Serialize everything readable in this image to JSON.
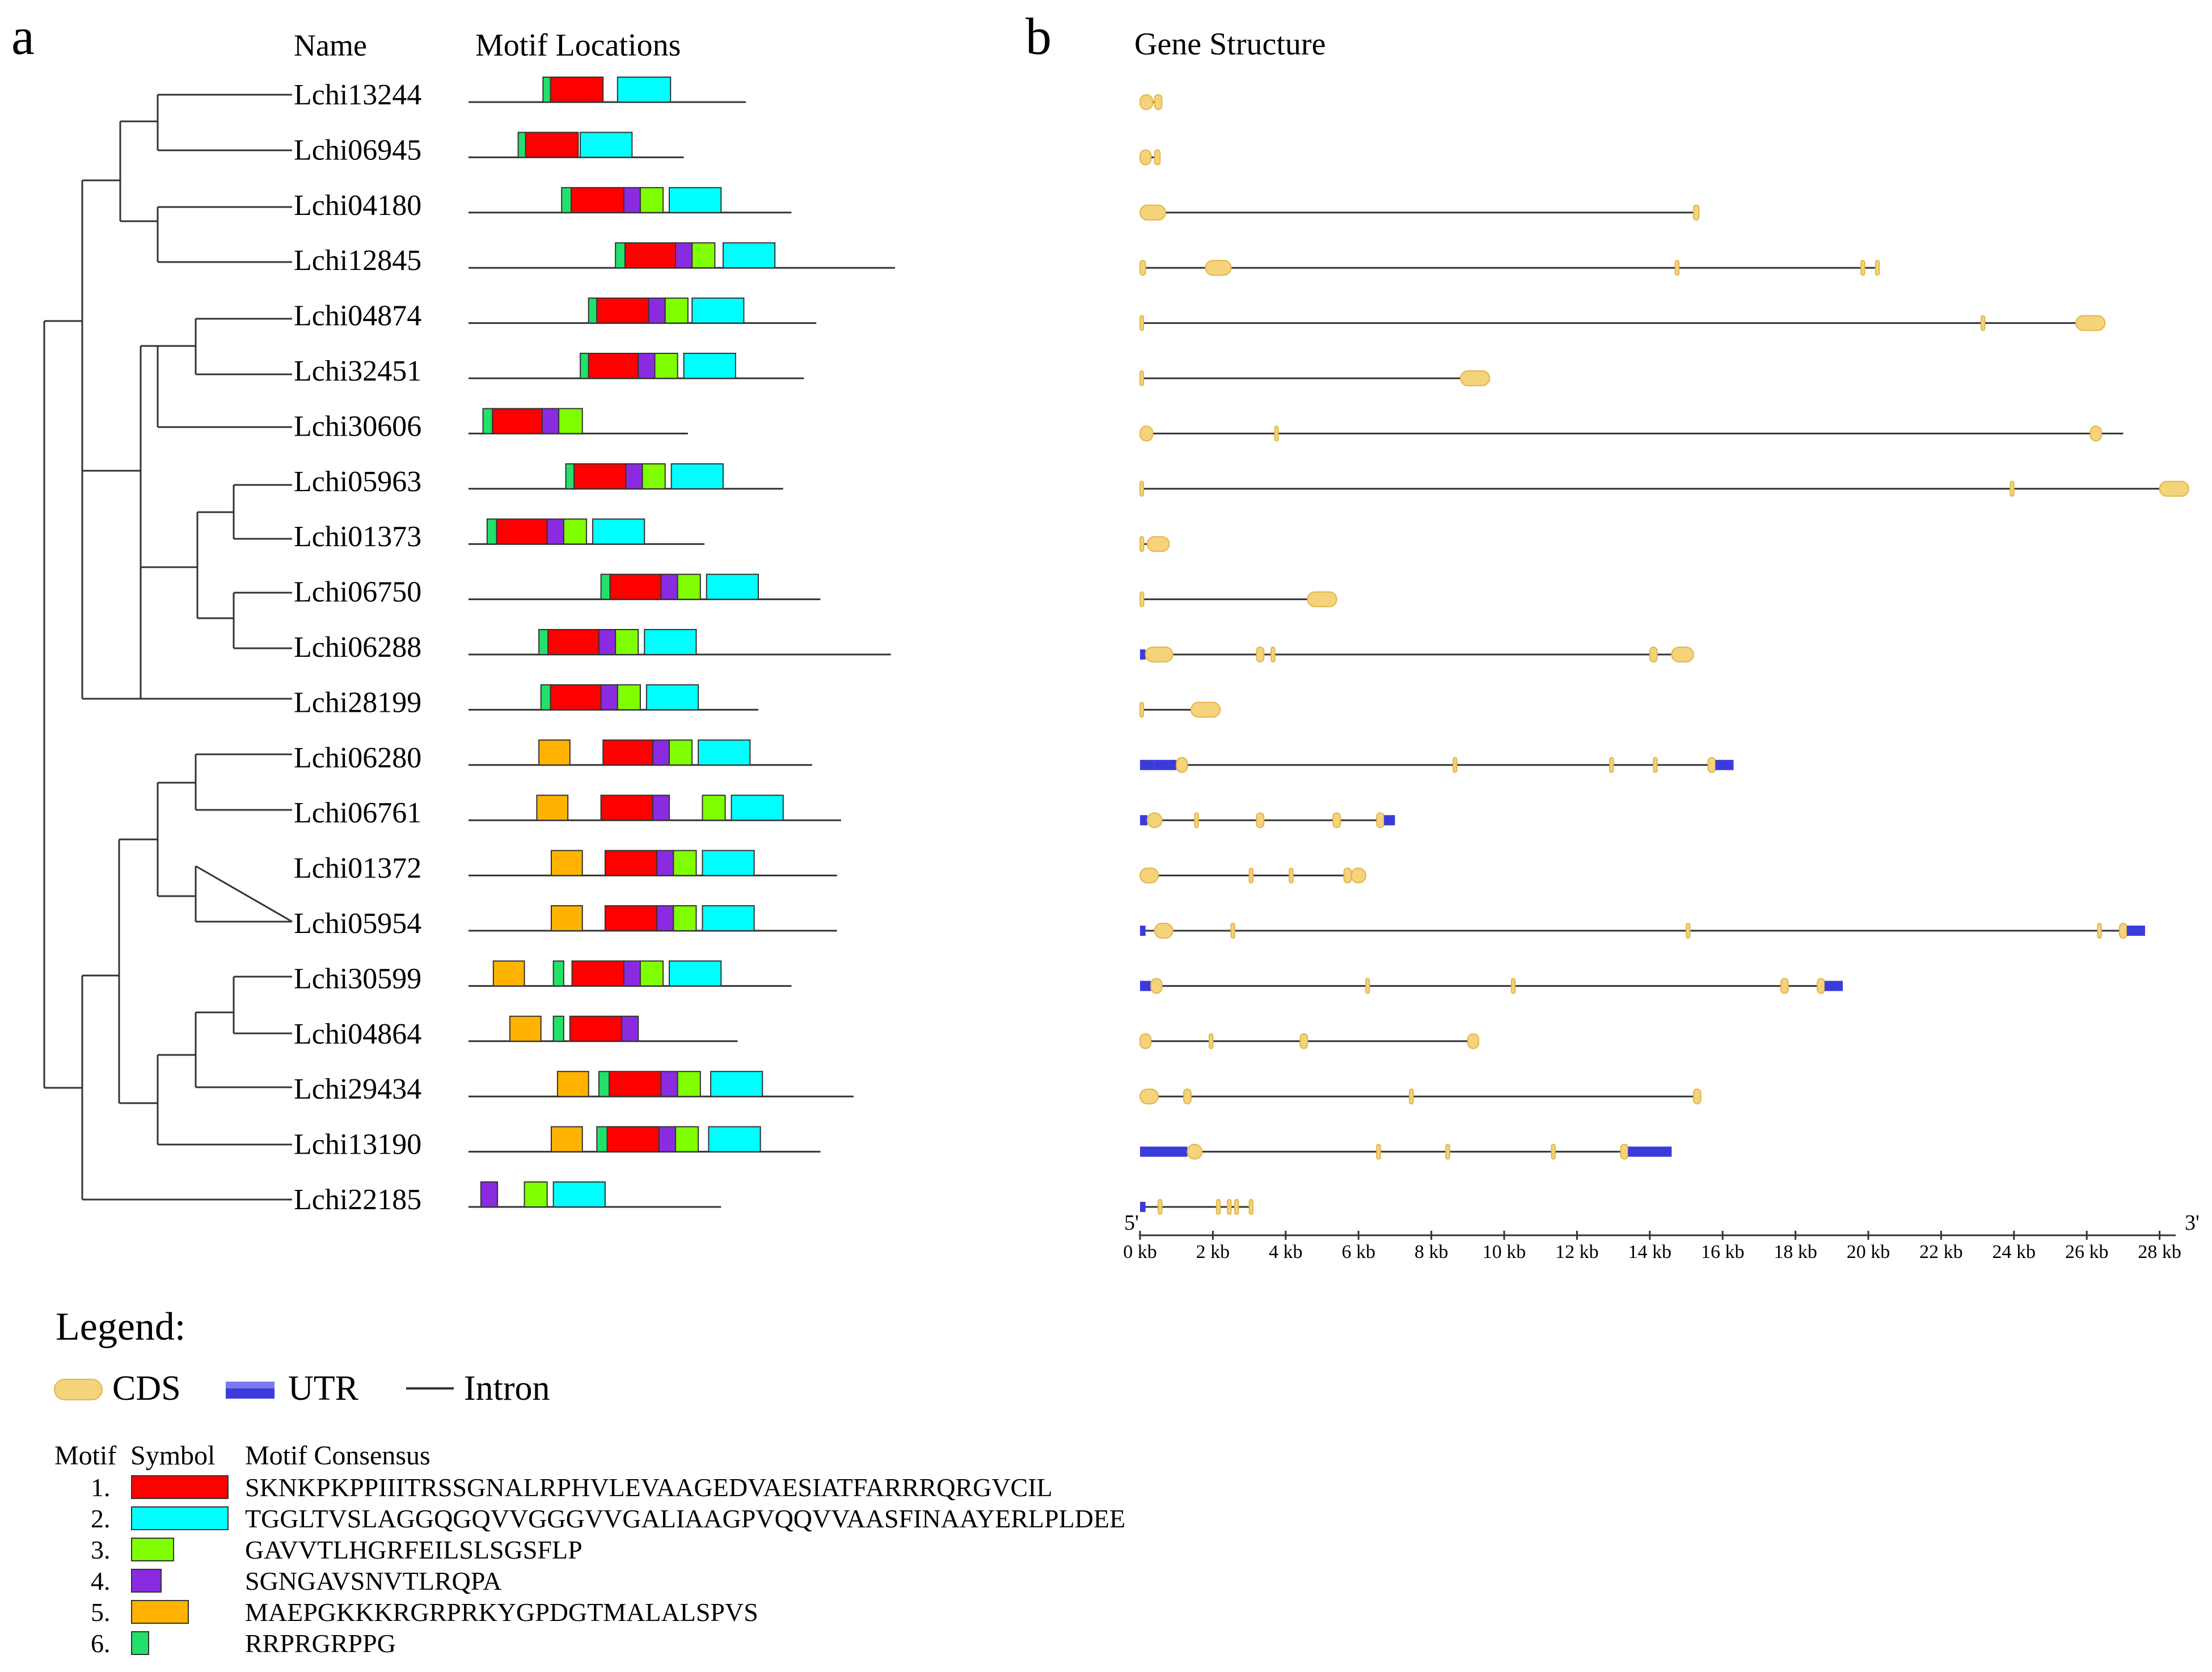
{
  "panel_a": {
    "label": "a",
    "name_header": "Name",
    "motif_header": "Motif Locations"
  },
  "panel_b": {
    "label": "b",
    "title": "Gene Structure",
    "five_prime": "5'",
    "three_prime": "3'",
    "axis_ticks": [
      "0 kb",
      "2 kb",
      "4 kb",
      "6 kb",
      "8 kb",
      "10 kb",
      "12 kb",
      "14 kb",
      "16 kb",
      "18 kb",
      "20 kb",
      "22 kb",
      "24 kb",
      "26 kb",
      "28 kb"
    ]
  },
  "colors": {
    "motif1": "#ff0000",
    "motif2": "#00ffff",
    "motif3": "#7fff00",
    "motif4": "#8a2be2",
    "motif5": "#ffb300",
    "motif6": "#22e06a",
    "cds": "#f4d37a",
    "utr": "#3b3bdc",
    "line": "#333333"
  },
  "genes": [
    {
      "name": "Lchi13244",
      "prot_len": 0.67,
      "motifs": [
        [
          6,
          0.18,
          0.198
        ],
        [
          1,
          0.198,
          0.325
        ],
        [
          2,
          0.36,
          0.488
        ]
      ],
      "exons": [
        [
          0,
          0.35,
          "cds"
        ],
        [
          0.4,
          0.6,
          "cds"
        ]
      ],
      "gene_len": 0.6
    },
    {
      "name": "Lchi06945",
      "prot_len": 0.52,
      "motifs": [
        [
          6,
          0.12,
          0.138
        ],
        [
          1,
          0.138,
          0.265
        ],
        [
          2,
          0.27,
          0.395
        ]
      ],
      "exons": [
        [
          0,
          0.3,
          "cds"
        ],
        [
          0.4,
          0.55,
          "cds"
        ]
      ],
      "gene_len": 0.55
    },
    {
      "name": "Lchi04180",
      "prot_len": 0.78,
      "motifs": [
        [
          6,
          0.225,
          0.248
        ],
        [
          1,
          0.248,
          0.375
        ],
        [
          4,
          0.375,
          0.415
        ],
        [
          3,
          0.415,
          0.47
        ],
        [
          2,
          0.485,
          0.61
        ]
      ],
      "exons": [
        [
          0,
          0.7,
          "cds"
        ],
        [
          15.2,
          15.35,
          "cds"
        ]
      ],
      "gene_len": 15.35
    },
    {
      "name": "Lchi12845",
      "prot_len": 1.03,
      "motifs": [
        [
          6,
          0.355,
          0.378
        ],
        [
          1,
          0.378,
          0.5
        ],
        [
          4,
          0.5,
          0.54
        ],
        [
          3,
          0.54,
          0.595
        ],
        [
          2,
          0.615,
          0.74
        ]
      ],
      "exons": [
        [
          0,
          0.15,
          "cds"
        ],
        [
          1.8,
          2.5,
          "cds"
        ],
        [
          14.7,
          14.8,
          "cds"
        ],
        [
          19.8,
          19.9,
          "cds"
        ],
        [
          20.2,
          20.3,
          "cds"
        ]
      ],
      "gene_len": 20.3
    },
    {
      "name": "Lchi04874",
      "prot_len": 0.84,
      "motifs": [
        [
          6,
          0.29,
          0.31
        ],
        [
          1,
          0.31,
          0.435
        ],
        [
          4,
          0.435,
          0.475
        ],
        [
          3,
          0.475,
          0.53
        ],
        [
          2,
          0.54,
          0.665
        ]
      ],
      "exons": [
        [
          0,
          0.07,
          "cds"
        ],
        [
          23.1,
          23.2,
          "cds"
        ],
        [
          25.7,
          26.5,
          "cds"
        ]
      ],
      "gene_len": 26.5
    },
    {
      "name": "Lchi32451",
      "prot_len": 0.81,
      "motifs": [
        [
          6,
          0.27,
          0.29
        ],
        [
          1,
          0.29,
          0.41
        ],
        [
          4,
          0.41,
          0.45
        ],
        [
          3,
          0.45,
          0.505
        ],
        [
          2,
          0.52,
          0.645
        ]
      ],
      "exons": [
        [
          0,
          0.08,
          "cds"
        ],
        [
          8.8,
          9.6,
          "cds"
        ]
      ],
      "gene_len": 9.6
    },
    {
      "name": "Lchi30606",
      "prot_len": 0.53,
      "motifs": [
        [
          6,
          0.035,
          0.058
        ],
        [
          1,
          0.058,
          0.178
        ],
        [
          4,
          0.178,
          0.218
        ],
        [
          3,
          0.218,
          0.275
        ]
      ],
      "exons": [
        [
          0,
          0.35,
          "cds"
        ],
        [
          3.7,
          3.75,
          "cds"
        ],
        [
          26.1,
          26.4,
          "cds"
        ]
      ],
      "gene_len": 27.0
    },
    {
      "name": "Lchi05963",
      "prot_len": 0.76,
      "motifs": [
        [
          6,
          0.235,
          0.255
        ],
        [
          1,
          0.255,
          0.38
        ],
        [
          4,
          0.38,
          0.42
        ],
        [
          3,
          0.42,
          0.475
        ],
        [
          2,
          0.49,
          0.615
        ]
      ],
      "exons": [
        [
          0,
          0.08,
          "cds"
        ],
        [
          23.9,
          24.0,
          "cds"
        ],
        [
          28.0,
          28.8,
          "cds"
        ]
      ],
      "gene_len": 28.8
    },
    {
      "name": "Lchi01373",
      "prot_len": 0.57,
      "motifs": [
        [
          6,
          0.045,
          0.068
        ],
        [
          1,
          0.068,
          0.19
        ],
        [
          4,
          0.19,
          0.23
        ],
        [
          3,
          0.23,
          0.285
        ],
        [
          2,
          0.3,
          0.425
        ]
      ],
      "exons": [
        [
          0,
          0.1,
          "cds"
        ],
        [
          0.2,
          0.8,
          "cds"
        ]
      ],
      "gene_len": 0.8
    },
    {
      "name": "Lchi06750",
      "prot_len": 0.85,
      "motifs": [
        [
          6,
          0.32,
          0.342
        ],
        [
          1,
          0.342,
          0.465
        ],
        [
          4,
          0.465,
          0.505
        ],
        [
          3,
          0.505,
          0.56
        ],
        [
          2,
          0.575,
          0.7
        ]
      ],
      "exons": [
        [
          0,
          0.1,
          "cds"
        ],
        [
          4.6,
          5.4,
          "cds"
        ]
      ],
      "gene_len": 5.4
    },
    {
      "name": "Lchi06288",
      "prot_len": 1.02,
      "motifs": [
        [
          6,
          0.17,
          0.192
        ],
        [
          1,
          0.192,
          0.315
        ],
        [
          4,
          0.315,
          0.355
        ],
        [
          3,
          0.355,
          0.41
        ],
        [
          2,
          0.425,
          0.55
        ]
      ],
      "exons": [
        [
          0,
          0.15,
          "utr"
        ],
        [
          0.15,
          0.9,
          "cds"
        ],
        [
          3.2,
          3.4,
          "cds"
        ],
        [
          3.6,
          3.7,
          "cds"
        ],
        [
          14.0,
          14.2,
          "cds"
        ],
        [
          14.6,
          15.2,
          "cds"
        ]
      ],
      "gene_len": 15.2
    },
    {
      "name": "Lchi28199",
      "prot_len": 0.7,
      "motifs": [
        [
          6,
          0.175,
          0.198
        ],
        [
          1,
          0.198,
          0.32
        ],
        [
          4,
          0.32,
          0.36
        ],
        [
          3,
          0.36,
          0.415
        ],
        [
          2,
          0.43,
          0.555
        ]
      ],
      "exons": [
        [
          0,
          0.05,
          "cds"
        ],
        [
          1.4,
          2.2,
          "cds"
        ]
      ],
      "gene_len": 2.2
    },
    {
      "name": "Lchi06280",
      "prot_len": 0.83,
      "motifs": [
        [
          5,
          0.17,
          0.245
        ],
        [
          1,
          0.325,
          0.445
        ],
        [
          4,
          0.445,
          0.485
        ],
        [
          3,
          0.485,
          0.54
        ],
        [
          2,
          0.555,
          0.68
        ]
      ],
      "exons": [
        [
          0,
          0.4,
          "utr"
        ],
        [
          0.4,
          1.0,
          "utr"
        ],
        [
          1.0,
          1.3,
          "cds"
        ],
        [
          8.6,
          8.7,
          "cds"
        ],
        [
          12.9,
          13.0,
          "cds"
        ],
        [
          14.1,
          14.2,
          "cds"
        ],
        [
          15.6,
          15.8,
          "cds"
        ],
        [
          15.8,
          16.3,
          "utr"
        ]
      ],
      "gene_len": 16.3
    },
    {
      "name": "Lchi06761",
      "prot_len": 0.9,
      "motifs": [
        [
          5,
          0.165,
          0.24
        ],
        [
          1,
          0.32,
          0.445
        ],
        [
          4,
          0.445,
          0.485
        ],
        [
          3,
          0.565,
          0.62
        ],
        [
          2,
          0.635,
          0.76
        ]
      ],
      "exons": [
        [
          0,
          0.2,
          "utr"
        ],
        [
          0.2,
          0.6,
          "cds"
        ],
        [
          1.5,
          1.6,
          "cds"
        ],
        [
          3.2,
          3.4,
          "cds"
        ],
        [
          5.3,
          5.5,
          "cds"
        ],
        [
          6.5,
          6.7,
          "cds"
        ],
        [
          6.7,
          7.0,
          "utr"
        ]
      ],
      "gene_len": 7.0
    },
    {
      "name": "Lchi01372",
      "prot_len": 0.89,
      "motifs": [
        [
          5,
          0.2,
          0.275
        ],
        [
          1,
          0.33,
          0.455
        ],
        [
          4,
          0.455,
          0.495
        ],
        [
          3,
          0.495,
          0.55
        ],
        [
          2,
          0.565,
          0.69
        ]
      ],
      "exons": [
        [
          0,
          0.5,
          "cds"
        ],
        [
          3.0,
          3.1,
          "cds"
        ],
        [
          4.1,
          4.2,
          "cds"
        ],
        [
          5.6,
          5.8,
          "cds"
        ],
        [
          5.8,
          6.2,
          "cds"
        ]
      ],
      "gene_len": 6.2
    },
    {
      "name": "Lchi05954",
      "prot_len": 0.89,
      "motifs": [
        [
          5,
          0.2,
          0.275
        ],
        [
          1,
          0.33,
          0.455
        ],
        [
          4,
          0.455,
          0.495
        ],
        [
          3,
          0.495,
          0.55
        ],
        [
          2,
          0.565,
          0.69
        ]
      ],
      "exons": [
        [
          0,
          0.15,
          "utr"
        ],
        [
          0.4,
          0.9,
          "cds"
        ],
        [
          2.5,
          2.6,
          "cds"
        ],
        [
          15.0,
          15.1,
          "cds"
        ],
        [
          26.3,
          26.4,
          "cds"
        ],
        [
          26.9,
          27.1,
          "cds"
        ],
        [
          27.1,
          27.6,
          "utr"
        ]
      ],
      "gene_len": 27.6
    },
    {
      "name": "Lchi30599",
      "prot_len": 0.78,
      "motifs": [
        [
          5,
          0.06,
          0.135
        ],
        [
          6,
          0.205,
          0.23
        ],
        [
          1,
          0.25,
          0.375
        ],
        [
          4,
          0.375,
          0.415
        ],
        [
          3,
          0.415,
          0.47
        ],
        [
          2,
          0.485,
          0.61
        ]
      ],
      "exons": [
        [
          0,
          0.3,
          "utr"
        ],
        [
          0.3,
          0.6,
          "cds"
        ],
        [
          6.2,
          6.3,
          "cds"
        ],
        [
          10.2,
          10.3,
          "cds"
        ],
        [
          17.6,
          17.8,
          "cds"
        ],
        [
          18.6,
          18.8,
          "cds"
        ],
        [
          18.8,
          19.3,
          "utr"
        ]
      ],
      "gene_len": 19.3
    },
    {
      "name": "Lchi04864",
      "prot_len": 0.65,
      "motifs": [
        [
          5,
          0.1,
          0.175
        ],
        [
          6,
          0.205,
          0.23
        ],
        [
          1,
          0.245,
          0.37
        ],
        [
          4,
          0.37,
          0.41
        ]
      ],
      "exons": [
        [
          0,
          0.3,
          "cds"
        ],
        [
          1.9,
          2.0,
          "cds"
        ],
        [
          4.4,
          4.6,
          "cds"
        ],
        [
          9.0,
          9.3,
          "cds"
        ]
      ],
      "gene_len": 9.3
    },
    {
      "name": "Lchi29434",
      "prot_len": 0.93,
      "motifs": [
        [
          5,
          0.215,
          0.29
        ],
        [
          6,
          0.315,
          0.34
        ],
        [
          1,
          0.34,
          0.465
        ],
        [
          4,
          0.465,
          0.505
        ],
        [
          3,
          0.505,
          0.56
        ],
        [
          2,
          0.585,
          0.71
        ]
      ],
      "exons": [
        [
          0,
          0.5,
          "cds"
        ],
        [
          1.2,
          1.4,
          "cds"
        ],
        [
          7.4,
          7.5,
          "cds"
        ],
        [
          15.2,
          15.4,
          "cds"
        ]
      ],
      "gene_len": 15.4
    },
    {
      "name": "Lchi13190",
      "prot_len": 0.85,
      "motifs": [
        [
          5,
          0.2,
          0.275
        ],
        [
          6,
          0.31,
          0.335
        ],
        [
          1,
          0.335,
          0.46
        ],
        [
          4,
          0.46,
          0.5
        ],
        [
          3,
          0.5,
          0.555
        ],
        [
          2,
          0.58,
          0.705
        ]
      ],
      "exons": [
        [
          0,
          1.3,
          "utr"
        ],
        [
          1.3,
          1.7,
          "cds"
        ],
        [
          6.5,
          6.6,
          "cds"
        ],
        [
          8.4,
          8.5,
          "cds"
        ],
        [
          11.3,
          11.4,
          "cds"
        ],
        [
          13.2,
          13.4,
          "cds"
        ],
        [
          13.4,
          14.6,
          "utr"
        ]
      ],
      "gene_len": 14.6
    },
    {
      "name": "Lchi22185",
      "prot_len": 0.61,
      "motifs": [
        [
          4,
          0.03,
          0.07
        ],
        [
          3,
          0.135,
          0.19
        ],
        [
          2,
          0.205,
          0.33
        ]
      ],
      "exons": [
        [
          0,
          0.15,
          "utr"
        ],
        [
          0.5,
          0.6,
          "cds"
        ],
        [
          2.1,
          2.2,
          "cds"
        ],
        [
          2.4,
          2.5,
          "cds"
        ],
        [
          2.6,
          2.7,
          "cds"
        ],
        [
          3.0,
          3.1,
          "cds"
        ]
      ],
      "gene_len": 3.1
    }
  ],
  "legend": {
    "title": "Legend:",
    "items": [
      {
        "label": "CDS",
        "kind": "cds"
      },
      {
        "label": "UTR",
        "kind": "utr"
      },
      {
        "label": "Intron",
        "kind": "intron"
      }
    ],
    "table_headers": [
      "Motif",
      "Symbol",
      "Motif Consensus"
    ],
    "motifs": [
      {
        "number": "1.",
        "color_key": "motif1",
        "width": "long",
        "consensus": "SKNKPKPPIIITRSSGNALRPHVLEVAAGEDVAESIATFARRRQRGVCIL"
      },
      {
        "number": "2.",
        "color_key": "motif2",
        "width": "long",
        "consensus": "TGGLTVSLAGGQGQVVGGGVVGALIAAGPVQQVVAASFINAAYERLPLDEE"
      },
      {
        "number": "3.",
        "color_key": "motif3",
        "width": "short",
        "consensus": "GAVVTLHGRFEILSLSGSFLP"
      },
      {
        "number": "4.",
        "color_key": "motif4",
        "width": "tiny",
        "consensus": "SGNGAVSNVTLRQPA"
      },
      {
        "number": "5.",
        "color_key": "motif5",
        "width": "medium",
        "consensus": "MAEPGKKKRGRPRKYGPDGTMALALSPVS"
      },
      {
        "number": "6.",
        "color_key": "motif6",
        "width": "micro",
        "consensus": "RRPRGRPPG"
      }
    ]
  }
}
